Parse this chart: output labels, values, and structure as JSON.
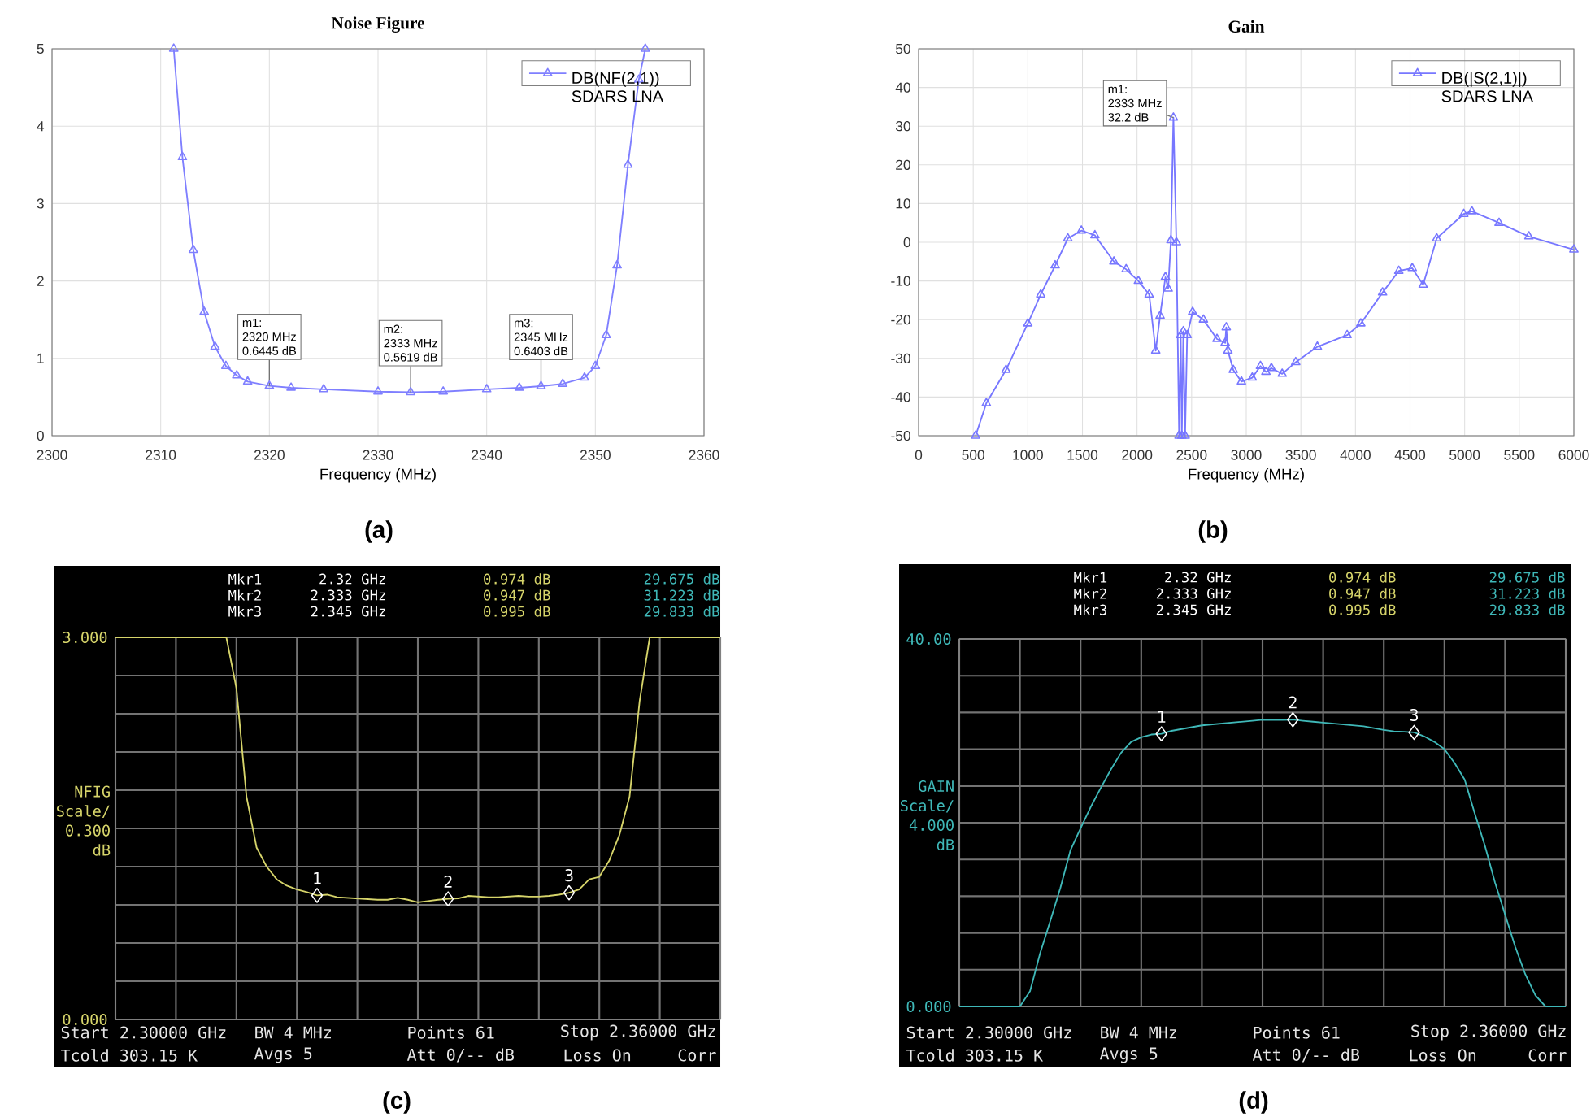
{
  "chart_data": [
    {
      "type": "line",
      "title": "Noise Figure",
      "xlabel": "Frequency (MHz)",
      "x": [
        2311.2,
        2312,
        2313,
        2314,
        2315,
        2316,
        2317,
        2318,
        2320,
        2322,
        2325,
        2330,
        2333,
        2336,
        2340,
        2343,
        2345,
        2347,
        2349,
        2350,
        2351,
        2352,
        2353,
        2354,
        2354.6
      ],
      "series": [
        {
          "name": "DB(NF(2,1)) SDARS LNA",
          "color": "#7f7fff",
          "marker": "triangle",
          "values": [
            5,
            3.6,
            2.4,
            1.6,
            1.15,
            0.9,
            0.78,
            0.7,
            0.6445,
            0.62,
            0.6,
            0.57,
            0.5619,
            0.57,
            0.6,
            0.62,
            0.6403,
            0.67,
            0.75,
            0.9,
            1.3,
            2.2,
            3.5,
            4.6,
            5
          ]
        }
      ],
      "xlim": [
        2300,
        2360
      ],
      "xticks": [
        2300,
        2310,
        2320,
        2330,
        2340,
        2350,
        2360
      ],
      "ylim": [
        0,
        5
      ],
      "yticks": [
        0,
        1,
        2,
        3,
        4,
        5
      ],
      "grid": true,
      "legend": "top right",
      "annotations": [
        "m1:",
        "2320 MHz",
        {
          "text": "0.6445 dB",
          "x": 2320,
          "y": 0.6445
        },
        "m2:",
        "2333 MHz",
        {
          "text": "0.5619 dB",
          "x": 2333,
          "y": 0.5619
        },
        "m3:",
        "2345 MHz",
        {
          "text": "0.6403 dB",
          "x": 2345,
          "y": 0.6403
        },
        "(a)"
      ]
    },
    {
      "type": "line",
      "title": "Gain",
      "xlabel": "Frequency (MHz)",
      "x": [
        522,
        620,
        800,
        1000,
        1118,
        1250,
        1366,
        1490,
        1614,
        1788,
        1900,
        2012,
        2111,
        2171,
        2211,
        2260,
        2285,
        2310,
        2333,
        2360,
        2385,
        2400,
        2410,
        2424,
        2440,
        2459,
        2509,
        2608,
        2732,
        2807,
        2817,
        2832,
        2881,
        2956,
        3055,
        3130,
        3180,
        3230,
        3329,
        3453,
        3651,
        3924,
        4049,
        4248,
        4397,
        4520,
        4620,
        4744,
        4992,
        5066,
        5315,
        5588,
        6000
      ],
      "series": [
        {
          "name": "DB(|S(2,1)|) SDARS LNA",
          "color": "#7777ff",
          "marker": "triangle",
          "values": [
            -50,
            -41.6,
            -33,
            -21,
            -13.5,
            -6,
            1,
            3,
            1.8,
            -5,
            -7,
            -10,
            -13.5,
            -28,
            -19,
            -9,
            -12,
            0.5,
            32.2,
            0,
            -50,
            -24,
            -50,
            -23,
            -50,
            -24,
            -18,
            -20,
            -25,
            -26,
            -22,
            -28,
            -33,
            -36,
            -35,
            -32,
            -33.5,
            -32.5,
            -34,
            -31,
            -27,
            -24,
            -21,
            -13,
            -7.4,
            -6.7,
            -11,
            1,
            7.3,
            8,
            5,
            1.5,
            -1.9
          ]
        }
      ],
      "xlim": [
        0,
        6000
      ],
      "xticks": [
        0,
        500,
        1000,
        1500,
        2000,
        2500,
        3000,
        3500,
        4000,
        4500,
        5000,
        5500,
        6000
      ],
      "ylim": [
        -50,
        50
      ],
      "yticks": [
        -50,
        -40,
        -30,
        -20,
        -10,
        0,
        10,
        20,
        30,
        40,
        50
      ],
      "grid": true,
      "legend": "top right",
      "annotations": [
        "m1:",
        "2333 MHz",
        {
          "text": "32.2 dB",
          "x": 2333,
          "y": 32.2
        },
        "(b)"
      ]
    },
    {
      "type": "line",
      "ylabel": "NFIG Scale/ 0.300 dB",
      "tick_labels": "y",
      "grid": true,
      "categories": [
        null,
        null,
        null,
        null,
        null,
        null,
        null,
        null,
        null,
        null,
        null,
        null,
        null,
        null,
        null,
        null,
        null,
        null,
        null,
        null,
        null,
        null,
        null,
        null,
        null,
        null,
        null,
        null,
        null,
        null,
        null,
        null,
        null,
        null,
        null,
        null,
        null,
        null,
        null,
        null,
        null,
        null,
        null,
        null,
        null,
        null,
        null,
        null,
        null,
        null,
        null,
        null,
        null,
        null,
        null,
        null,
        null,
        null,
        null,
        null,
        null
      ],
      "series": [
        {
          "color": "#d6d46a",
          "marker": "none",
          "values": [
            3,
            3,
            3,
            3,
            3,
            3,
            3,
            3,
            3,
            3,
            3,
            3,
            2.6,
            1.75,
            1.35,
            1.2,
            1.1,
            1.05,
            1.02,
            1.0,
            0.974,
            0.98,
            0.96,
            0.955,
            0.95,
            0.945,
            0.94,
            0.94,
            0.955,
            0.94,
            0.92,
            0.93,
            0.94,
            0.947,
            0.95,
            0.97,
            0.965,
            0.96,
            0.96,
            0.965,
            0.97,
            0.965,
            0.965,
            0.97,
            0.98,
            0.995,
            1.02,
            1.1,
            1.12,
            1.25,
            1.45,
            1.75,
            2.5,
            3,
            3,
            3,
            3,
            3,
            3,
            3,
            3
          ]
        },
        {
          "type": "scatter",
          "color": "#ffffff",
          "marker": "diamond",
          "values": [
            null,
            null,
            null,
            null,
            null,
            null,
            null,
            null,
            null,
            null,
            null,
            null,
            null,
            null,
            null,
            null,
            null,
            null,
            null,
            null,
            0.974,
            null,
            null,
            null,
            null,
            null,
            null,
            null,
            null,
            null,
            null,
            null,
            null,
            0.947,
            null,
            null,
            null,
            null,
            null,
            null,
            null,
            null,
            null,
            null,
            null,
            0.995,
            null,
            null,
            null,
            null,
            null,
            null,
            null,
            null,
            null,
            null,
            null,
            null,
            null,
            null,
            null
          ]
        }
      ],
      "ylim": [
        0,
        3
      ],
      "yticks": [
        {
          "value": 0,
          "label": "0.000"
        },
        {
          "value": 0.3,
          "label": null
        },
        {
          "value": 0.6,
          "label": null
        },
        {
          "value": 0.9,
          "label": null
        },
        {
          "value": 1.2,
          "label": null
        },
        {
          "value": 1.5,
          "label": null
        },
        {
          "value": 1.8,
          "label": null
        },
        {
          "value": 2.1,
          "label": null
        },
        {
          "value": 2.4,
          "label": null
        },
        {
          "value": 2.7,
          "label": null
        },
        {
          "value": 3,
          "label": "3.000"
        }
      ],
      "annotations": [
        "Mkr1",
        "2.32 GHz",
        "0.974 dB",
        "29.675 dB",
        "Mkr2",
        "2.333 GHz",
        "0.947 dB",
        "31.223 dB",
        "Mkr3",
        "2.345 GHz",
        "0.995 dB",
        "29.833 dB",
        "Start 2.30000 GHz",
        "BW 4 MHz",
        "Points 61",
        "Stop 2.36000 GHz",
        "Tcold 303.15 K",
        "Avgs 5",
        "Att 0/-- dB",
        "Loss On",
        "Corr",
        "1",
        "2",
        "3",
        "(c)"
      ]
    },
    {
      "type": "line",
      "ylabel": "GAIN Scale/ 4.000 dB",
      "tick_labels": "y",
      "grid": true,
      "categories": [
        null,
        null,
        null,
        null,
        null,
        null,
        null,
        null,
        null,
        null,
        null,
        null,
        null,
        null,
        null,
        null,
        null,
        null,
        null,
        null,
        null,
        null,
        null,
        null,
        null,
        null,
        null,
        null,
        null,
        null,
        null,
        null,
        null,
        null,
        null,
        null,
        null,
        null,
        null,
        null,
        null,
        null,
        null,
        null,
        null,
        null,
        null,
        null,
        null,
        null,
        null,
        null,
        null,
        null,
        null,
        null,
        null,
        null,
        null,
        null,
        null
      ],
      "series": [
        {
          "color": "#3fb8b8",
          "marker": "none",
          "values": [
            0,
            0,
            0,
            0,
            0,
            0,
            0,
            1.65,
            5.8,
            9.3,
            12.9,
            17,
            19.4,
            21.7,
            23.8,
            25.8,
            27.6,
            28.8,
            29.3,
            29.6,
            29.675,
            30,
            30.2,
            30.4,
            30.6,
            30.7,
            30.8,
            30.9,
            31,
            31.1,
            31.2,
            31.2,
            31.2,
            31.223,
            31.1,
            31,
            30.9,
            30.8,
            30.7,
            30.6,
            30.5,
            30.3,
            30.1,
            29.95,
            29.9,
            29.833,
            29.4,
            28.8,
            28,
            26.5,
            24.7,
            21,
            17.5,
            13.5,
            10,
            6.5,
            3.5,
            1.2,
            0,
            0,
            0
          ]
        },
        {
          "type": "scatter",
          "color": "#ffffff",
          "marker": "diamond",
          "values": [
            null,
            null,
            null,
            null,
            null,
            null,
            null,
            null,
            null,
            null,
            null,
            null,
            null,
            null,
            null,
            null,
            null,
            null,
            null,
            null,
            29.675,
            null,
            null,
            null,
            null,
            null,
            null,
            null,
            null,
            null,
            null,
            null,
            null,
            31.223,
            null,
            null,
            null,
            null,
            null,
            null,
            null,
            null,
            null,
            null,
            null,
            29.833,
            null,
            null,
            null,
            null,
            null,
            null,
            null,
            null,
            null,
            null,
            null,
            null,
            null,
            null,
            null
          ]
        }
      ],
      "ylim": [
        0,
        40
      ],
      "yticks": [
        {
          "value": 0,
          "label": "0.000"
        },
        {
          "value": 4,
          "label": null
        },
        {
          "value": 8,
          "label": null
        },
        {
          "value": 12,
          "label": null
        },
        {
          "value": 16,
          "label": null
        },
        {
          "value": 20,
          "label": null
        },
        {
          "value": 24,
          "label": null
        },
        {
          "value": 28,
          "label": null
        },
        {
          "value": 32,
          "label": null
        },
        {
          "value": 36,
          "label": null
        },
        {
          "value": 40,
          "label": "40.00"
        }
      ],
      "annotations": [
        "Mkr1",
        "2.32 GHz",
        "0.974 dB",
        "29.675 dB",
        "Mkr2",
        "2.333 GHz",
        "0.947 dB",
        "31.223 dB",
        "Mkr3",
        "2.345 GHz",
        "0.995 dB",
        "29.833 dB",
        "Start 2.30000 GHz",
        "BW 4 MHz",
        "Points 61",
        "Stop 2.36000 GHz",
        "Tcold 303.15 K",
        "Avgs 5",
        "Att 0/-- dB",
        "Loss On",
        "Corr",
        "1",
        "2",
        "3",
        "(d)"
      ]
    }
  ]
}
